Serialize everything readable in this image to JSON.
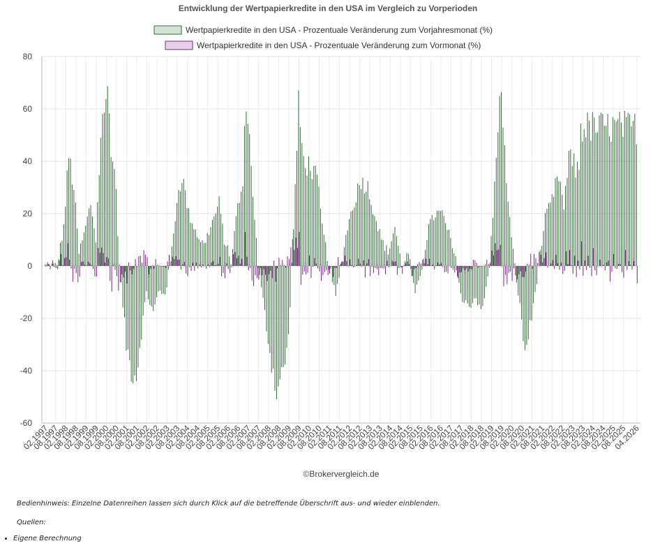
{
  "chart_data": {
    "type": "bar",
    "title": "Entwicklung der Wertpapierkredite in den USA im Vergleich zu Vorperioden",
    "xlabel": "",
    "ylabel": "",
    "ylim": [
      -60,
      80
    ],
    "yticks": [
      80,
      60,
      40,
      20,
      0,
      -20,
      -40,
      -60
    ],
    "grid": true,
    "legend_position": "top-center",
    "x_start": "1997-02",
    "x_end": "2026-04",
    "x_tick_labels": [
      "02.1997",
      "08.1997",
      "02.1998",
      "08.1998",
      "02.1999",
      "08.1999",
      "02.2000",
      "08.2000",
      "02.2001",
      "08.2001",
      "02.2002",
      "08.2002",
      "02.2003",
      "08.2003",
      "02.2004",
      "08.2004",
      "02.2005",
      "08.2005",
      "02.2006",
      "08.2006",
      "02.2007",
      "08.2007",
      "02.2008",
      "08.2008",
      "02.2009",
      "08.2009",
      "02.2010",
      "08.2010",
      "02.2011",
      "08.2011",
      "02.2012",
      "08.2012",
      "02.2013",
      "08.2013",
      "02.2014",
      "08.2014",
      "02.2015",
      "08.2015",
      "02.2016",
      "08.2016",
      "02.2017",
      "08.2017",
      "02.2018",
      "08.2018",
      "02.2019",
      "08.2019",
      "02.2020",
      "08.2020",
      "02.2021",
      "08.2021",
      "02.2022",
      "08.2022",
      "02.2023",
      "08.2023",
      "02.2024",
      "08.2024",
      "02.2025",
      "08.2025",
      "04.2026"
    ],
    "series": [
      {
        "name": "Wertpapierkredite in den USA - Prozentuale Veränderung zum Vorjahresmonat (%)",
        "color": "#3a6b3f",
        "fill": "#d5e1d5",
        "anchors": [
          [
            "1997-02",
            0
          ],
          [
            "1997-09",
            0
          ],
          [
            "1998-01",
            15
          ],
          [
            "1998-04",
            42
          ],
          [
            "1998-07",
            30
          ],
          [
            "1998-10",
            5
          ],
          [
            "1999-01",
            12
          ],
          [
            "1999-05",
            24
          ],
          [
            "1999-08",
            10
          ],
          [
            "1999-11",
            50
          ],
          [
            "2000-02",
            62
          ],
          [
            "2000-03",
            78
          ],
          [
            "2000-05",
            40
          ],
          [
            "2000-07",
            40
          ],
          [
            "2000-10",
            0
          ],
          [
            "2001-02",
            -30
          ],
          [
            "2001-05",
            -40
          ],
          [
            "2001-08",
            -42
          ],
          [
            "2001-11",
            -25
          ],
          [
            "2002-02",
            -10
          ],
          [
            "2002-06",
            -18
          ],
          [
            "2002-09",
            -10
          ],
          [
            "2003-01",
            -10
          ],
          [
            "2003-04",
            0
          ],
          [
            "2003-08",
            25
          ],
          [
            "2003-11",
            35
          ],
          [
            "2004-03",
            20
          ],
          [
            "2004-08",
            12
          ],
          [
            "2004-12",
            8
          ],
          [
            "2005-04",
            15
          ],
          [
            "2005-09",
            24
          ],
          [
            "2005-12",
            10
          ],
          [
            "2006-04",
            2
          ],
          [
            "2006-08",
            23
          ],
          [
            "2006-11",
            30
          ],
          [
            "2007-01",
            67
          ],
          [
            "2007-04",
            38
          ],
          [
            "2007-08",
            0
          ],
          [
            "2007-12",
            -18
          ],
          [
            "2008-03",
            -33
          ],
          [
            "2008-07",
            -48
          ],
          [
            "2008-11",
            -40
          ],
          [
            "2009-02",
            -28
          ],
          [
            "2009-04",
            0
          ],
          [
            "2009-08",
            60
          ],
          [
            "2009-11",
            40
          ],
          [
            "2010-03",
            38
          ],
          [
            "2010-07",
            33
          ],
          [
            "2010-10",
            15
          ],
          [
            "2011-02",
            0
          ],
          [
            "2011-06",
            -12
          ],
          [
            "2011-09",
            0
          ],
          [
            "2012-01",
            15
          ],
          [
            "2012-05",
            25
          ],
          [
            "2012-09",
            33
          ],
          [
            "2013-01",
            30
          ],
          [
            "2013-05",
            20
          ],
          [
            "2013-09",
            10
          ],
          [
            "2014-01",
            5
          ],
          [
            "2014-05",
            15
          ],
          [
            "2014-09",
            0
          ],
          [
            "2015-01",
            5
          ],
          [
            "2015-05",
            -12
          ],
          [
            "2015-09",
            0
          ],
          [
            "2016-01",
            15
          ],
          [
            "2016-05",
            20
          ],
          [
            "2016-09",
            20
          ],
          [
            "2017-01",
            12
          ],
          [
            "2017-05",
            2
          ],
          [
            "2017-09",
            -14
          ],
          [
            "2018-01",
            -15
          ],
          [
            "2018-05",
            -12
          ],
          [
            "2018-09",
            -17
          ],
          [
            "2019-01",
            0
          ],
          [
            "2019-05",
            40
          ],
          [
            "2019-07",
            72
          ],
          [
            "2019-10",
            42
          ],
          [
            "2020-02",
            10
          ],
          [
            "2020-06",
            -10
          ],
          [
            "2020-10",
            -33
          ],
          [
            "2021-02",
            -20
          ],
          [
            "2021-06",
            0
          ],
          [
            "2021-10",
            18
          ],
          [
            "2022-02",
            25
          ],
          [
            "2022-06",
            35
          ],
          [
            "2022-09",
            22
          ],
          [
            "2023-01",
            45
          ],
          [
            "2023-04",
            36
          ],
          [
            "2023-06",
            39
          ],
          [
            "2023-07",
            53
          ]
        ]
      },
      {
        "name": "Wertpapierkredite in den USA - Prozentuale Veränderung zum Vormonat (%)",
        "color": "#7a2a82",
        "fill": "#e6cfe8"
      }
    ]
  },
  "credit": "©Brokervergleich.de",
  "footer": {
    "hint": "Bedienhinweis: Einzelne Datenreihen lassen sich durch Klick auf die betreffende Überschrift aus- und wieder einblenden.",
    "sources_label": "Quellen:",
    "sources": [
      "Eigene Berechnung"
    ]
  }
}
